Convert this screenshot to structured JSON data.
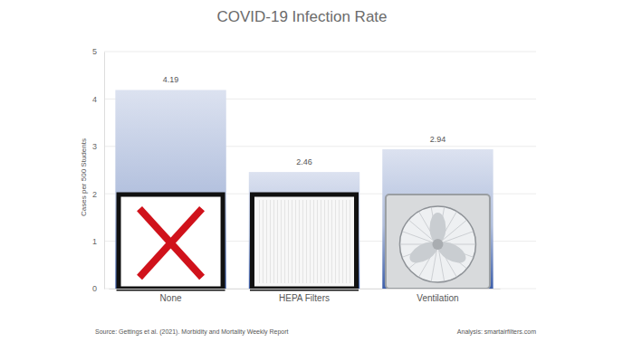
{
  "chart_data": {
    "type": "bar",
    "title": "COVID-19 Infection Rate",
    "y_label": "Cases per 500 Students",
    "categories": [
      "None",
      "HEPA Filters",
      "Ventilation"
    ],
    "values": [
      4.19,
      2.46,
      2.94
    ],
    "color": "#3d5fab",
    "ylim": [
      0,
      5
    ],
    "yticks": [
      0,
      1,
      2,
      3,
      4,
      5
    ],
    "grid": true,
    "data_labels": true,
    "annotations": [
      "Source: Gettings et al. (2021). Morbidity and Mortality Weekly Report",
      "Analysis: smartairfilters.com"
    ]
  }
}
